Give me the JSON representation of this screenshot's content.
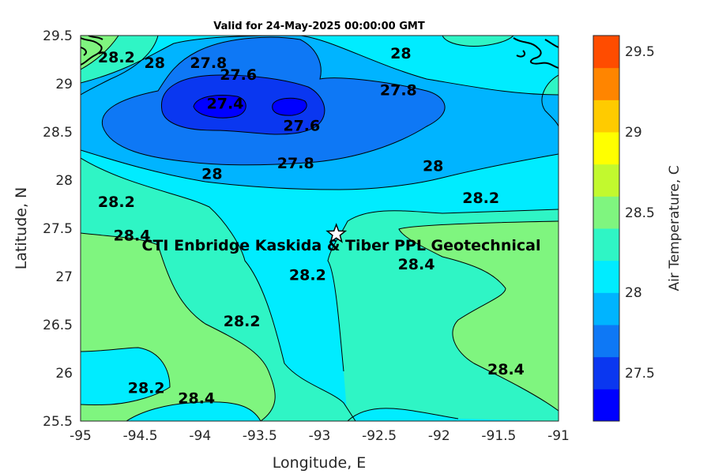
{
  "chart_data": {
    "type": "contour",
    "title": "Valid for 24-May-2025 00:00:00 GMT",
    "xlabel": "Longitude, E",
    "ylabel": "Latitude, N",
    "xlim": [
      -95,
      -91
    ],
    "ylim": [
      25.5,
      29.5
    ],
    "xticks": [
      "-95",
      "-94.5",
      "-94",
      "-93.5",
      "-93",
      "-92.5",
      "-92",
      "-91.5",
      "-91"
    ],
    "yticks": [
      "25.5",
      "26",
      "26.5",
      "27",
      "27.5",
      "28",
      "28.5",
      "29",
      "29.5"
    ],
    "colorbar": {
      "label": "Air Temperature, C",
      "range": [
        27.2,
        29.6
      ],
      "ticks": [
        "27.5",
        "28",
        "28.5",
        "29",
        "29.5"
      ],
      "levels": [
        27.2,
        27.4,
        27.6,
        27.8,
        28.0,
        28.2,
        28.4,
        28.6,
        28.8,
        29.0,
        29.2,
        29.4,
        29.6
      ],
      "colors": [
        "#0000ff",
        "#0a37f0",
        "#0e78f5",
        "#00b4ff",
        "#00ecff",
        "#2ff5c5",
        "#7ff57f",
        "#c2f92e",
        "#ffff00",
        "#ffcb00",
        "#ff8500",
        "#ff4c00"
      ]
    },
    "contour_labels": [
      {
        "text": "28.2",
        "lon": -94.7,
        "lat": 29.28
      },
      {
        "text": "28",
        "lon": -94.38,
        "lat": 29.22
      },
      {
        "text": "27.8",
        "lon": -93.93,
        "lat": 29.22
      },
      {
        "text": "27.6",
        "lon": -93.68,
        "lat": 29.1
      },
      {
        "text": "27.4",
        "lon": -93.79,
        "lat": 28.8
      },
      {
        "text": "27.6",
        "lon": -93.15,
        "lat": 28.57
      },
      {
        "text": "27.8",
        "lon": -93.2,
        "lat": 28.18
      },
      {
        "text": "28",
        "lon": -93.9,
        "lat": 28.07
      },
      {
        "text": "28",
        "lon": -92.32,
        "lat": 29.32
      },
      {
        "text": "27.8",
        "lon": -92.34,
        "lat": 28.94
      },
      {
        "text": "28",
        "lon": -92.05,
        "lat": 28.15
      },
      {
        "text": "28.2",
        "lon": -91.65,
        "lat": 27.82
      },
      {
        "text": "28.2",
        "lon": -94.7,
        "lat": 27.78
      },
      {
        "text": "28.4",
        "lon": -94.57,
        "lat": 27.43
      },
      {
        "text": "28.2",
        "lon": -93.1,
        "lat": 27.02
      },
      {
        "text": "28.2",
        "lon": -93.65,
        "lat": 26.54
      },
      {
        "text": "28.4",
        "lon": -92.19,
        "lat": 27.13
      },
      {
        "text": "28.4",
        "lon": -91.44,
        "lat": 26.04
      },
      {
        "text": "28.2",
        "lon": -94.45,
        "lat": 25.85
      },
      {
        "text": "28.4",
        "lon": -94.03,
        "lat": 25.74
      }
    ],
    "site": {
      "label": "CTI Enbridge  Kaskida & Tiber PPL Geotechnical",
      "lon": -92.86,
      "lat": 27.44
    }
  }
}
